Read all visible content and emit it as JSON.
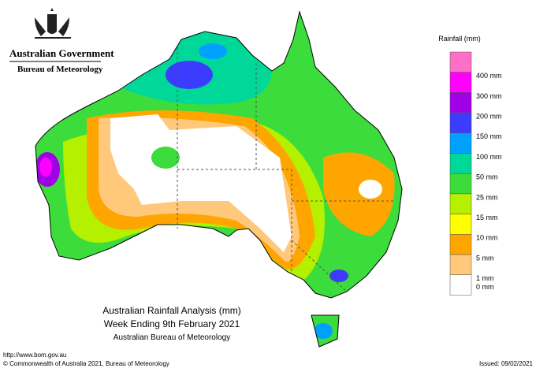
{
  "header": {
    "government": "Australian Government",
    "bureau": "Bureau of Meteorology"
  },
  "legend": {
    "title": "Rainfall (mm)",
    "items": [
      {
        "label": "400 mm",
        "color": "#ff00ff"
      },
      {
        "label": "300 mm",
        "color": "#a000e6"
      },
      {
        "label": "200 mm",
        "color": "#3c3cff"
      },
      {
        "label": "150 mm",
        "color": "#00a0ff"
      },
      {
        "label": "100 mm",
        "color": "#00d89a"
      },
      {
        "label": "50 mm",
        "color": "#3cdc3c"
      },
      {
        "label": "25 mm",
        "color": "#b4f000"
      },
      {
        "label": "15 mm",
        "color": "#ffff00"
      },
      {
        "label": "10 mm",
        "color": "#ffa500"
      },
      {
        "label": "5 mm",
        "color": "#ffc87a"
      },
      {
        "label": "1 mm",
        "color": "#ffffff"
      },
      {
        "label": "0 mm",
        "color": "#ffffff"
      }
    ],
    "top_color": "#ff6ec7"
  },
  "caption": {
    "line1": "Australian Rainfall Analysis (mm)",
    "line2": "Week Ending 9th February 2021",
    "line3": "Australian Bureau of Meteorology"
  },
  "footer": {
    "url": "http://www.bom.gov.au",
    "copyright": "© Commonwealth of Australia 2021, Bureau of Meteorology",
    "issued": "Issued: 09/02/2021"
  }
}
